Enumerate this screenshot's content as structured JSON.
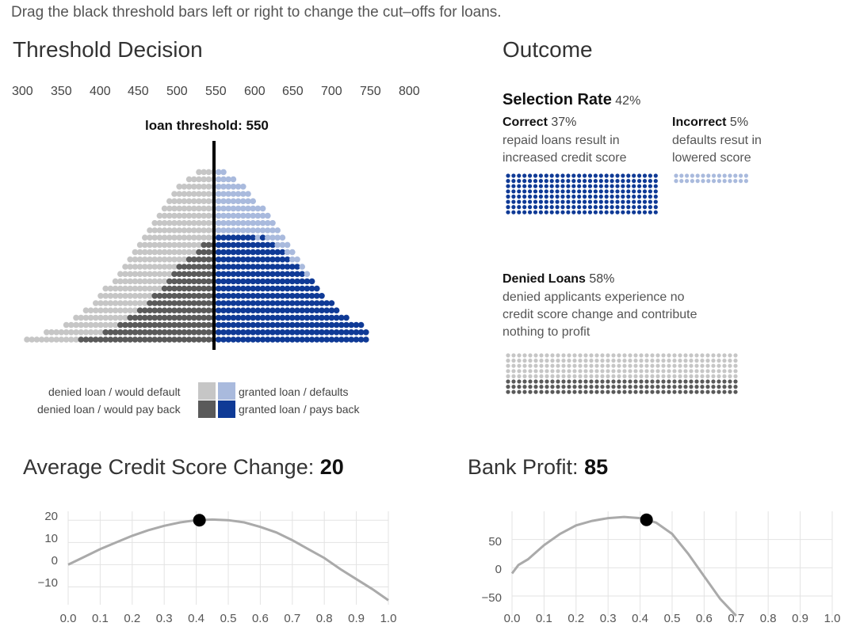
{
  "instructions": "Drag the black threshold bars left or right to change the cut–offs for loans.",
  "threshold_section": {
    "title": "Threshold Decision",
    "scale_ticks": [
      "300",
      "350",
      "400",
      "450",
      "500",
      "550",
      "600",
      "650",
      "700",
      "750",
      "800"
    ],
    "threshold_label": "loan threshold: 550",
    "threshold_value": 550
  },
  "legend": {
    "denied_default": "denied loan / would default",
    "denied_payback": "denied loan / would pay back",
    "granted_default": "granted loan / defaults",
    "granted_payback": "granted loan / pays back"
  },
  "colors": {
    "denied_default": "#c6c6c6",
    "denied_payback": "#5a5a5a",
    "granted_default": "#a9badd",
    "granted_payback": "#0f3a96",
    "curve": "#aaaaaa",
    "grid": "#e3e3e3"
  },
  "outcome": {
    "title": "Outcome",
    "selection_rate_label": "Selection Rate",
    "selection_rate_value": "42%",
    "correct_label": "Correct",
    "correct_value": "37%",
    "correct_desc_1": "repaid loans result in",
    "correct_desc_2": "increased credit score",
    "incorrect_label": "Incorrect",
    "incorrect_value": "5%",
    "incorrect_desc_1": "defaults resut in",
    "incorrect_desc_2": "lowered score",
    "denied_label": "Denied Loans",
    "denied_value": "58%",
    "denied_desc_1": "denied applicants experience no",
    "denied_desc_2": "credit score change and contribute",
    "denied_desc_3": "nothing to profit"
  },
  "credit_chart": {
    "title_prefix": "Average Credit Score Change: ",
    "title_value": "20",
    "x_ticks": [
      "0.0",
      "0.1",
      "0.2",
      "0.3",
      "0.4",
      "0.5",
      "0.6",
      "0.7",
      "0.8",
      "0.9",
      "1.0"
    ],
    "y_ticks": [
      "20",
      "10",
      "0",
      "−10"
    ]
  },
  "profit_chart": {
    "title_prefix": "Bank Profit: ",
    "title_value": "85",
    "x_ticks": [
      "0.0",
      "0.1",
      "0.2",
      "0.3",
      "0.4",
      "0.5",
      "0.6",
      "0.7",
      "0.8",
      "0.9",
      "1.0"
    ],
    "y_ticks": [
      "50",
      "0",
      "−50"
    ]
  },
  "chart_data": [
    {
      "type": "line",
      "title": "Average Credit Score Change: 20",
      "xlabel": "",
      "ylabel": "",
      "xlim": [
        0,
        1
      ],
      "ylim": [
        -18,
        24
      ],
      "grid": true,
      "x": [
        0.0,
        0.05,
        0.1,
        0.15,
        0.2,
        0.25,
        0.3,
        0.35,
        0.4,
        0.45,
        0.5,
        0.55,
        0.6,
        0.65,
        0.7,
        0.75,
        0.8,
        0.85,
        0.9,
        0.95,
        1.0
      ],
      "y": [
        0,
        3.5,
        7,
        10,
        13,
        15.5,
        17.5,
        19,
        20,
        20.3,
        20,
        19,
        17,
        14.5,
        11,
        7,
        3,
        -2,
        -6.5,
        -11,
        -16
      ],
      "marker": {
        "x": 0.41,
        "y": 20
      }
    },
    {
      "type": "line",
      "title": "Bank Profit: 85",
      "xlabel": "",
      "ylabel": "",
      "xlim": [
        0,
        1
      ],
      "ylim": [
        -85,
        100
      ],
      "grid": true,
      "x": [
        0.0,
        0.02,
        0.05,
        0.1,
        0.15,
        0.2,
        0.25,
        0.3,
        0.35,
        0.4,
        0.45,
        0.5,
        0.55,
        0.6,
        0.65,
        0.7
      ],
      "y": [
        -10,
        5,
        15,
        40,
        60,
        75,
        83,
        88,
        90,
        88,
        80,
        60,
        25,
        -15,
        -55,
        -90
      ],
      "marker": {
        "x": 0.42,
        "y": 85
      }
    }
  ]
}
